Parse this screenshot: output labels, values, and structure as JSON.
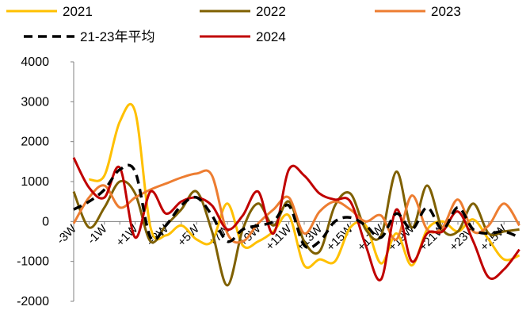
{
  "chart_data": {
    "type": "line",
    "x": [
      "-3W",
      "-2W",
      "-1W",
      "0W",
      "+1W",
      "+2W",
      "+3W",
      "+4W",
      "+5W",
      "+6W",
      "+7W",
      "+8W",
      "+9W",
      "+10W",
      "+11W",
      "+12W",
      "+13W",
      "+14W",
      "+15W",
      "+16W",
      "+17W",
      "+18W",
      "+19W",
      "+20W",
      "+21W",
      "+22W",
      "+23W",
      "+24W",
      "+25W",
      "+26W"
    ],
    "x_tick_labels": [
      "-3W",
      "-1W",
      "+1W",
      "+3W",
      "+5W",
      "+7W",
      "+9W",
      "+11W",
      "+13W",
      "+15W",
      "+17W",
      "+19W",
      "+21W",
      "+23W",
      "+25W"
    ],
    "ylim": [
      -2000,
      4000
    ],
    "y_ticks": [
      -2000,
      -1000,
      0,
      1000,
      2000,
      3000,
      4000
    ],
    "legend_position": "top",
    "series": [
      {
        "name": "2021",
        "color": "#FFC000",
        "dash": "solid",
        "values": [
          null,
          1050,
          1150,
          2500,
          2750,
          -150,
          -350,
          -100,
          -450,
          -500,
          450,
          -600,
          -500,
          -250,
          150,
          -1100,
          -950,
          -1000,
          -150,
          -100,
          -1050,
          -300,
          -1100,
          -200,
          0,
          -250,
          50,
          -450,
          -950,
          -850
        ]
      },
      {
        "name": "2022",
        "color": "#7F6000",
        "dash": "solid",
        "values": [
          750,
          -150,
          350,
          1000,
          700,
          -500,
          -100,
          300,
          750,
          -250,
          -1600,
          -200,
          450,
          -100,
          500,
          -500,
          -750,
          400,
          700,
          -200,
          -350,
          1250,
          -150,
          900,
          -200,
          -250,
          450,
          -300,
          -250,
          -200
        ]
      },
      {
        "name": "2023",
        "color": "#ED7D31",
        "dash": "solid",
        "values": [
          -50,
          600,
          900,
          350,
          600,
          800,
          950,
          1100,
          1200,
          1150,
          -300,
          -500,
          -50,
          300,
          600,
          -300,
          250,
          500,
          300,
          0,
          150,
          -450,
          650,
          -200,
          -150,
          550,
          -250,
          -100,
          450,
          -100
        ]
      },
      {
        "name": "21-23年平均",
        "color": "#000000",
        "dash": "dash",
        "values": [
          300,
          500,
          800,
          1300,
          1250,
          -400,
          -100,
          400,
          600,
          150,
          -500,
          -200,
          -100,
          0,
          400,
          -600,
          -500,
          0,
          100,
          -100,
          -400,
          200,
          -200,
          350,
          -200,
          350,
          -200,
          -300,
          -250,
          -400
        ]
      },
      {
        "name": "2024",
        "color": "#C00000",
        "dash": "solid",
        "values": [
          1600,
          850,
          600,
          1350,
          -400,
          750,
          200,
          500,
          600,
          400,
          -200,
          150,
          750,
          -300,
          1300,
          1150,
          700,
          550,
          500,
          -600,
          -1450,
          300,
          -1000,
          -300,
          -250,
          250,
          -500,
          -1400,
          -1200,
          -700
        ]
      }
    ]
  }
}
